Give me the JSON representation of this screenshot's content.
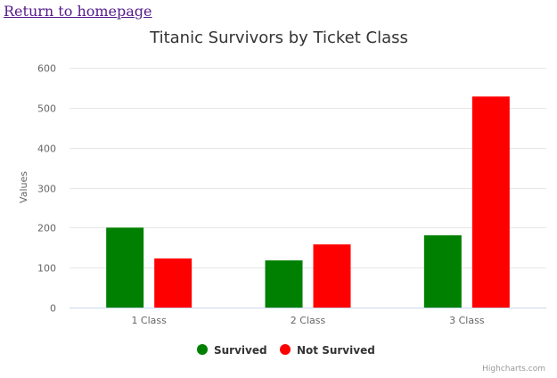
{
  "nav": {
    "home_link": "Return to homepage"
  },
  "chart_data": {
    "type": "bar",
    "title": "Titanic Survivors by Ticket Class",
    "xlabel": "",
    "ylabel": "Values",
    "categories": [
      "1 Class",
      "2 Class",
      "3 Class"
    ],
    "series": [
      {
        "name": "Survived",
        "color": "#008000",
        "values": [
          200,
          118,
          181
        ]
      },
      {
        "name": "Not Survived",
        "color": "#ff0000",
        "values": [
          123,
          158,
          528
        ]
      }
    ],
    "ylim": [
      0,
      600
    ],
    "yticks": [
      0,
      100,
      200,
      300,
      400,
      500,
      600
    ],
    "grid": true,
    "legend_position": "bottom-center"
  },
  "credits": "Highcharts.com"
}
